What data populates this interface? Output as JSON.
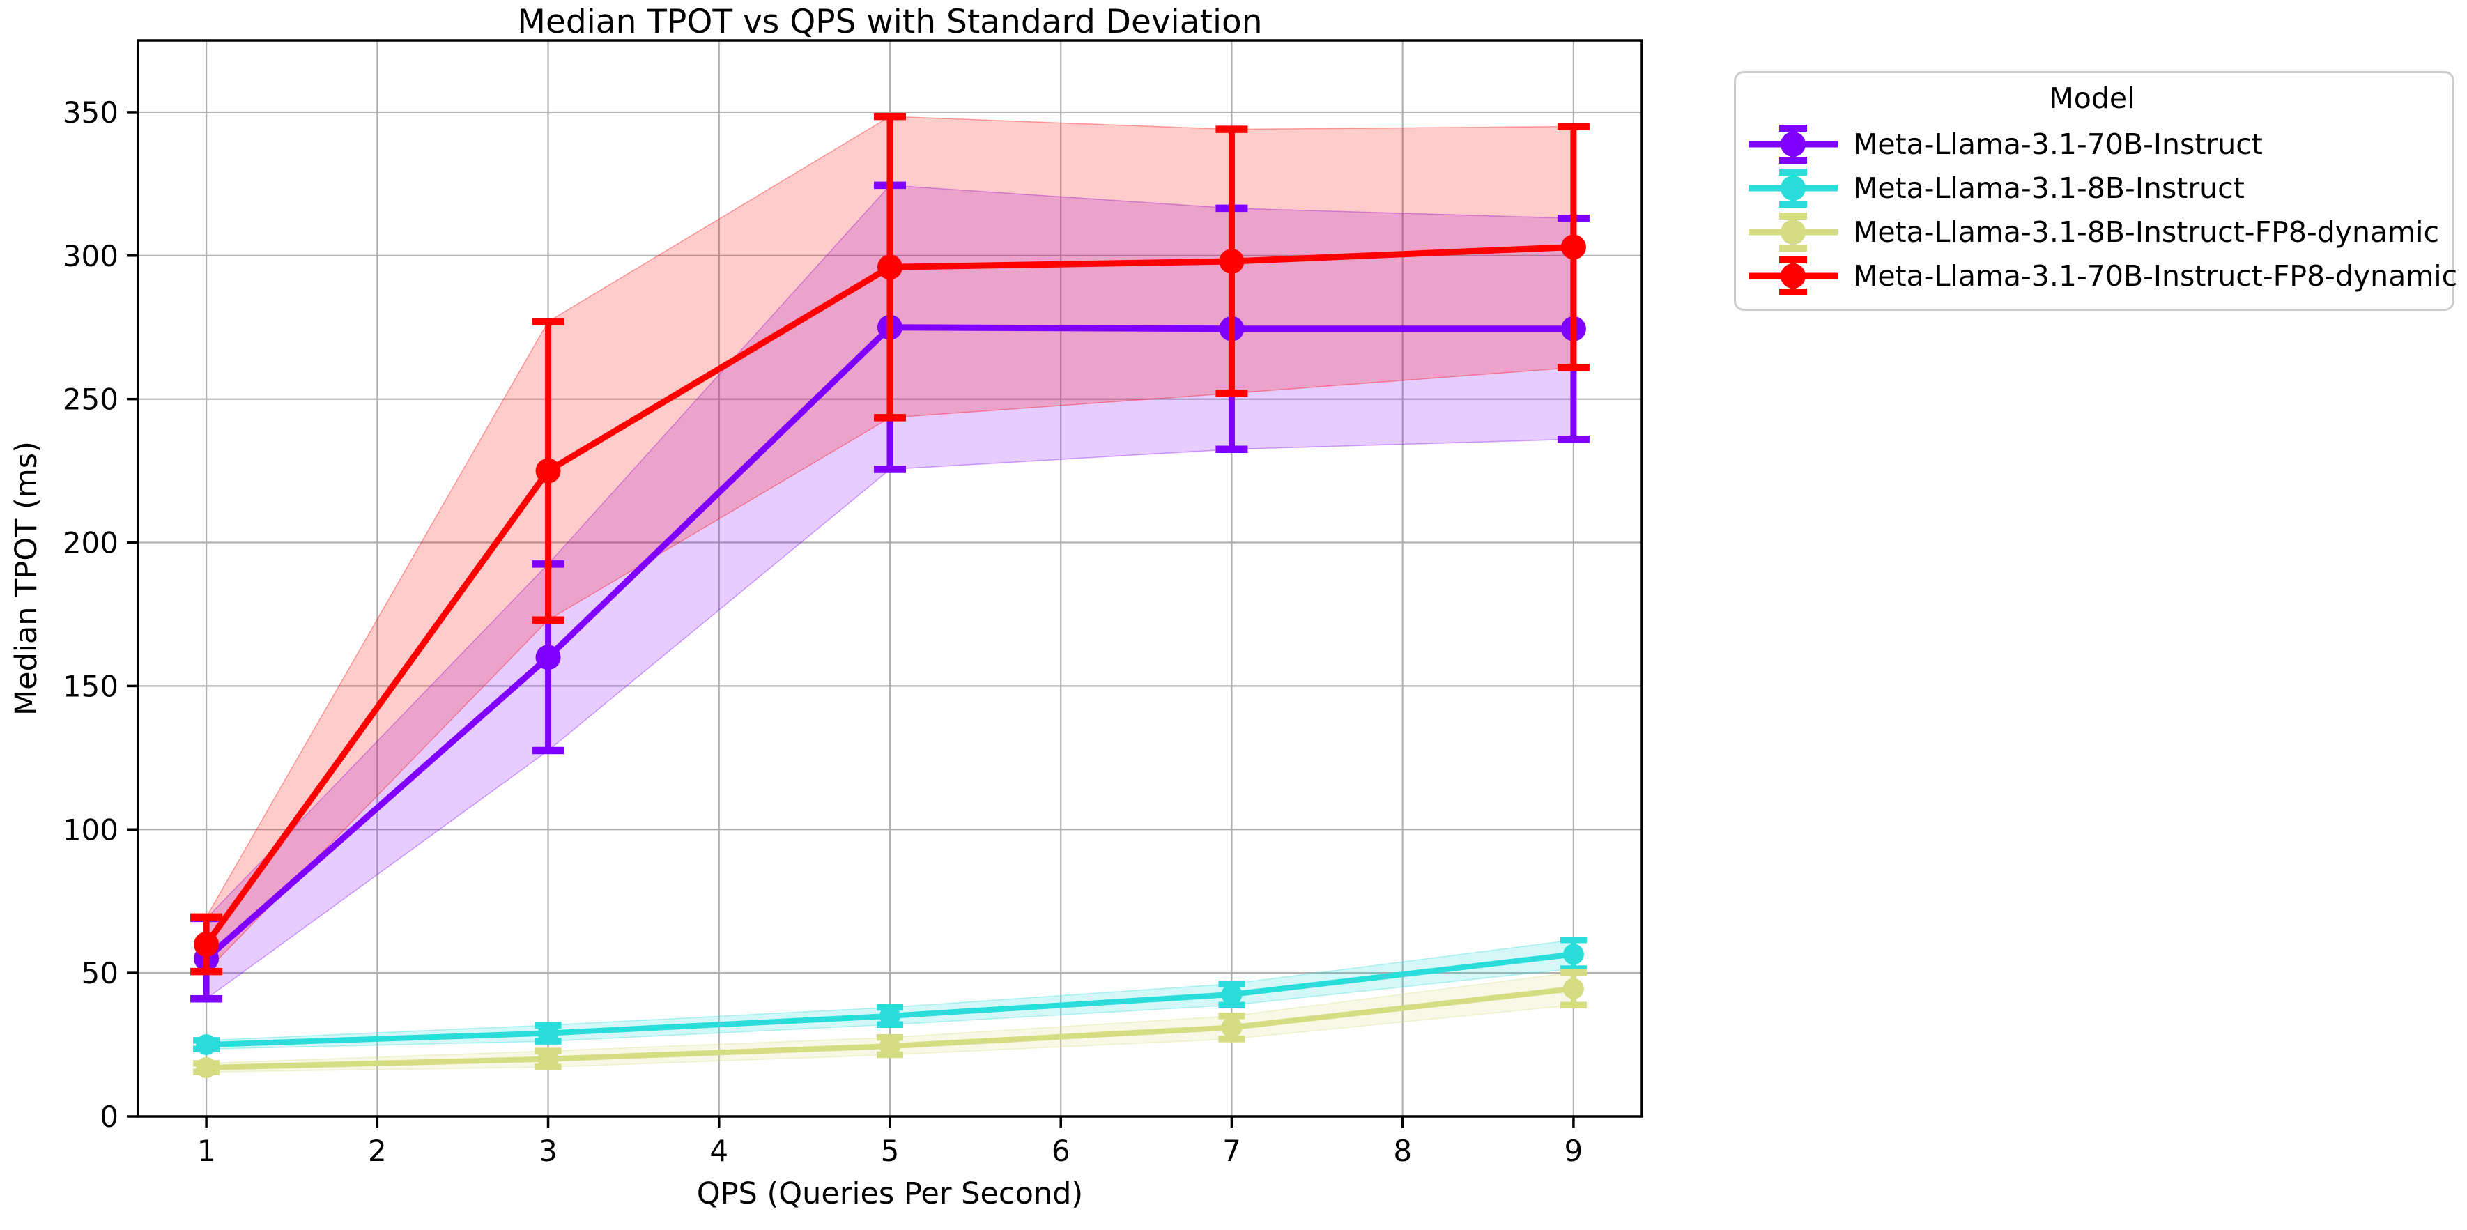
{
  "chart_data": {
    "type": "line",
    "title": "Median TPOT vs QPS with Standard Deviation",
    "xlabel": "QPS (Queries Per Second)",
    "ylabel": "Median TPOT (ms)",
    "legend_title": "Model",
    "legend_position": "outside-right",
    "grid": true,
    "background": "#ffffff",
    "grid_color": "#b0b0b0",
    "axis_color": "#000000",
    "legend_border_color": "#cccccc",
    "band_alpha": 0.2,
    "xlim": [
      0.6,
      9.4
    ],
    "ylim": [
      0,
      375
    ],
    "x_ticks": [
      1,
      2,
      3,
      4,
      5,
      6,
      7,
      8,
      9
    ],
    "y_ticks": [
      0,
      50,
      100,
      150,
      200,
      250,
      300,
      350
    ],
    "x": [
      1,
      3,
      5,
      7,
      9
    ],
    "series": [
      {
        "name": "Meta-Llama-3.1-70B-Instruct",
        "color": "#8000ff",
        "median": [
          55,
          160,
          275,
          274.5,
          274.5
        ],
        "std": [
          14,
          32.5,
          49.5,
          42,
          38.5
        ],
        "line_width": 9,
        "marker_radius": 18,
        "cap_half_width": 23
      },
      {
        "name": "Meta-Llama-3.1-8B-Instruct",
        "color": "#2addda",
        "median": [
          25,
          29,
          35,
          42.5,
          56.5
        ],
        "std": [
          1.5,
          2.8,
          3,
          3.7,
          5
        ],
        "line_width": 8,
        "marker_radius": 15,
        "cap_half_width": 19
      },
      {
        "name": "Meta-Llama-3.1-8B-Instruct-FP8-dynamic",
        "color": "#d5dd82",
        "median": [
          17,
          20,
          24.5,
          31,
          44.5
        ],
        "std": [
          1.5,
          2.8,
          3,
          4,
          5.7
        ],
        "line_width": 8,
        "marker_radius": 15,
        "cap_half_width": 19
      },
      {
        "name": "Meta-Llama-3.1-70B-Instruct-FP8-dynamic",
        "color": "#ff0000",
        "median": [
          60,
          225,
          296,
          298,
          303
        ],
        "std": [
          9.5,
          52,
          52.5,
          46,
          42
        ],
        "line_width": 9,
        "marker_radius": 18,
        "cap_half_width": 23
      }
    ]
  }
}
